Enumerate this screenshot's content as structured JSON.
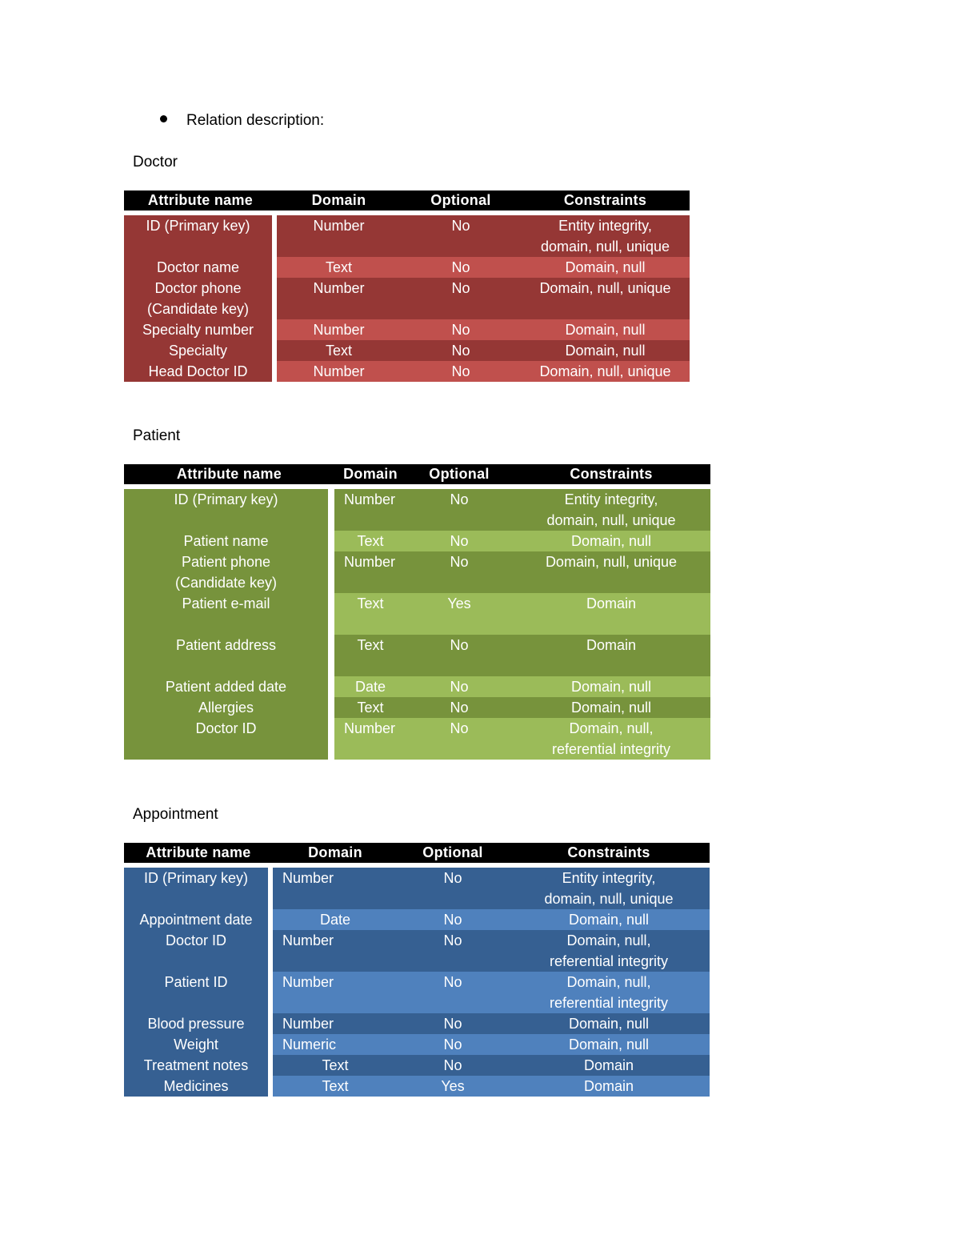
{
  "intro": {
    "text": "Relation description:"
  },
  "tables": [
    {
      "title": "Doctor",
      "headers": [
        "Attribute name",
        "Domain",
        "Optional",
        "Constraints"
      ],
      "rows": [
        {
          "name": [
            "ID (Primary key)"
          ],
          "domain": "Number",
          "optional": "No",
          "constraints": [
            "Entity integrity,",
            "domain, null, unique"
          ]
        },
        {
          "name": [
            "Doctor name"
          ],
          "domain": "Text",
          "optional": "No",
          "constraints": [
            "Domain, null"
          ]
        },
        {
          "name": [
            "Doctor phone",
            "(Candidate key)"
          ],
          "domain": "Number",
          "optional": "No",
          "constraints": [
            "Domain, null, unique"
          ]
        },
        {
          "name": [
            "Specialty number"
          ],
          "domain": "Number",
          "optional": "No",
          "constraints": [
            "Domain, null"
          ]
        },
        {
          "name": [
            "Specialty"
          ],
          "domain": "Text",
          "optional": "No",
          "constraints": [
            "Domain, null"
          ]
        },
        {
          "name": [
            "Head Doctor ID"
          ],
          "domain": "Number",
          "optional": "No",
          "constraints": [
            "Domain, null, unique"
          ]
        }
      ],
      "colors": {
        "name_bg": "#953735",
        "dark": "#953735",
        "light": "#c0504d"
      }
    },
    {
      "title": "Patient",
      "headers": [
        "Attribute name",
        "Domain",
        "Optional",
        "Constraints"
      ],
      "rows": [
        {
          "name": [
            "ID (Primary key)"
          ],
          "domain": "Number",
          "optional": "No",
          "constraints": [
            "Entity integrity,",
            "domain, null, unique"
          ]
        },
        {
          "name": [
            "Patient name"
          ],
          "domain": "Text",
          "optional": "No",
          "constraints": [
            "Domain, null"
          ]
        },
        {
          "name": [
            "Patient phone",
            "(Candidate key)"
          ],
          "domain": "Number",
          "optional": "No",
          "constraints": [
            "Domain, null, unique"
          ]
        },
        {
          "name": [
            "Patient e-mail"
          ],
          "domain": "Text",
          "optional": "Yes",
          "constraints": [
            "Domain"
          ]
        },
        {
          "name": [
            "Patient address"
          ],
          "domain": "Text",
          "optional": "No",
          "constraints": [
            "Domain"
          ]
        },
        {
          "name": [
            "Patient added date"
          ],
          "domain": "Date",
          "optional": "No",
          "constraints": [
            "Domain, null"
          ]
        },
        {
          "name": [
            "Allergies"
          ],
          "domain": "Text",
          "optional": "No",
          "constraints": [
            "Domain, null"
          ]
        },
        {
          "name": [
            "Doctor ID"
          ],
          "domain": "Number",
          "optional": "No",
          "constraints": [
            "Domain, null,",
            "referential integrity"
          ]
        }
      ],
      "colors": {
        "name_bg": "#77933c",
        "dark": "#77933c",
        "light": "#9bbb59"
      }
    },
    {
      "title": "Appointment",
      "headers": [
        "Attribute name",
        "Domain",
        "Optional",
        "Constraints"
      ],
      "rows": [
        {
          "name": [
            "ID (Primary key)"
          ],
          "domain": "Number",
          "optional": "No",
          "constraints": [
            "Entity integrity,",
            "domain, null, unique"
          ]
        },
        {
          "name": [
            "Appointment date"
          ],
          "domain": "Date",
          "optional": "No",
          "constraints": [
            "Domain, null"
          ]
        },
        {
          "name": [
            "Doctor ID"
          ],
          "domain": "Number",
          "optional": "No",
          "constraints": [
            "Domain, null,",
            "referential integrity"
          ]
        },
        {
          "name": [
            "Patient ID"
          ],
          "domain": "Number",
          "optional": "No",
          "constraints": [
            "Domain, null,",
            "referential integrity"
          ]
        },
        {
          "name": [
            "Blood pressure"
          ],
          "domain": "Number",
          "optional": "No",
          "constraints": [
            "Domain, null"
          ]
        },
        {
          "name": [
            "Weight"
          ],
          "domain": "Numeric",
          "optional": "No",
          "constraints": [
            "Domain, null"
          ]
        },
        {
          "name": [
            "Treatment notes"
          ],
          "domain": "Text",
          "optional": "No",
          "constraints": [
            "Domain"
          ]
        },
        {
          "name": [
            "Medicines"
          ],
          "domain": "Text",
          "optional": "Yes",
          "constraints": [
            "Domain"
          ]
        }
      ],
      "colors": {
        "name_bg": "#366092",
        "dark": "#366092",
        "light": "#4f81bd"
      }
    }
  ]
}
